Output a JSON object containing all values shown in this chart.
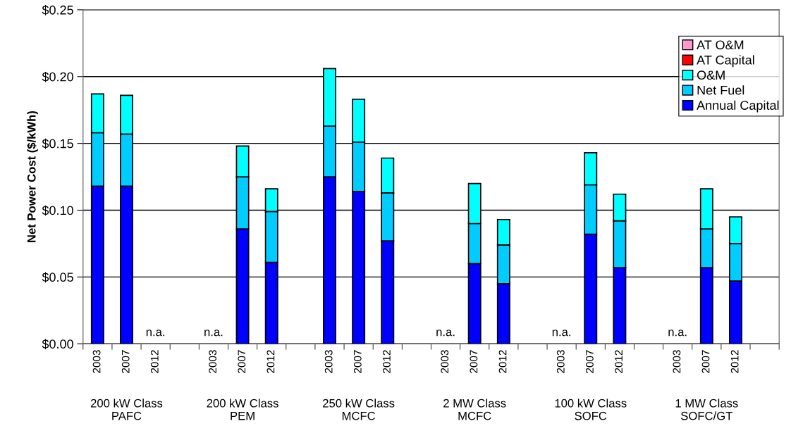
{
  "chart_data": {
    "type": "bar",
    "stacked": true,
    "ylabel": "Net Power Cost ($/kWh)",
    "categories": [
      "2003",
      "2007",
      "2012",
      null,
      "2003",
      "2007",
      "2012",
      null,
      "2003",
      "2007",
      "2012",
      null,
      "2003",
      "2007",
      "2012",
      null,
      "2003",
      "2007",
      "2012",
      null,
      "2003",
      "2007",
      "2012",
      null
    ],
    "series": [
      {
        "name": "Annual Capital",
        "color": "#0000ff",
        "values": [
          0.118,
          0.118,
          null,
          null,
          null,
          0.086,
          0.061,
          null,
          0.125,
          0.114,
          0.077,
          null,
          null,
          0.06,
          0.045,
          null,
          null,
          0.082,
          0.057,
          null,
          null,
          0.057,
          0.047,
          null
        ],
        "value_labels": [
          null,
          null,
          "n.a.",
          null,
          "n.a.",
          null,
          null,
          null,
          null,
          null,
          null,
          null,
          "n.a.",
          null,
          null,
          null,
          "n.a.",
          null,
          null,
          null,
          "n.a.",
          null,
          null,
          null
        ]
      },
      {
        "name": "Net Fuel",
        "color": "#00ccff",
        "values": [
          0.04,
          0.039,
          null,
          null,
          null,
          0.039,
          0.038,
          null,
          0.038,
          0.037,
          0.036,
          null,
          null,
          0.03,
          0.029,
          null,
          null,
          0.037,
          0.035,
          null,
          null,
          0.029,
          0.028,
          null
        ]
      },
      {
        "name": "O&M",
        "color": "#00ffff",
        "values": [
          0.029,
          0.029,
          null,
          null,
          null,
          0.023,
          0.017,
          null,
          0.043,
          0.032,
          0.026,
          null,
          null,
          0.03,
          0.019,
          null,
          null,
          0.024,
          0.02,
          null,
          null,
          0.03,
          0.02,
          null
        ]
      },
      {
        "name": "AT Capital",
        "color": "#ff0000",
        "values": [
          null,
          null,
          null,
          null,
          null,
          null,
          null,
          null,
          null,
          null,
          null,
          null,
          null,
          null,
          null,
          null,
          null,
          null,
          null,
          null,
          null,
          null,
          null,
          null
        ]
      },
      {
        "name": "AT O&M",
        "color": "#ff99cc",
        "values": [
          null,
          null,
          null,
          null,
          null,
          null,
          null,
          null,
          null,
          null,
          null,
          null,
          null,
          null,
          null,
          null,
          null,
          null,
          null,
          null,
          null,
          null,
          null,
          null
        ]
      }
    ],
    "ylim": [
      0,
      0.25
    ],
    "yticks": [
      {
        "value": 0,
        "label": "$0.00"
      },
      {
        "value": 0.05,
        "label": "$0.05"
      },
      {
        "value": 0.1,
        "label": "$0.10"
      },
      {
        "value": 0.15,
        "label": "$0.15"
      },
      {
        "value": 0.2,
        "label": "$0.20"
      },
      {
        "value": 0.25,
        "label": "$0.25"
      }
    ],
    "grid": "y",
    "legend": "top right",
    "annotations": [
      "200 kW Class\nPAFC",
      "200 kW Class\nPEM",
      "250 kW Class\nMCFC",
      "2 MW Class\nMCFC",
      "100 kW Class\nSOFC",
      "1 MW Class\nSOFC/GT"
    ]
  }
}
